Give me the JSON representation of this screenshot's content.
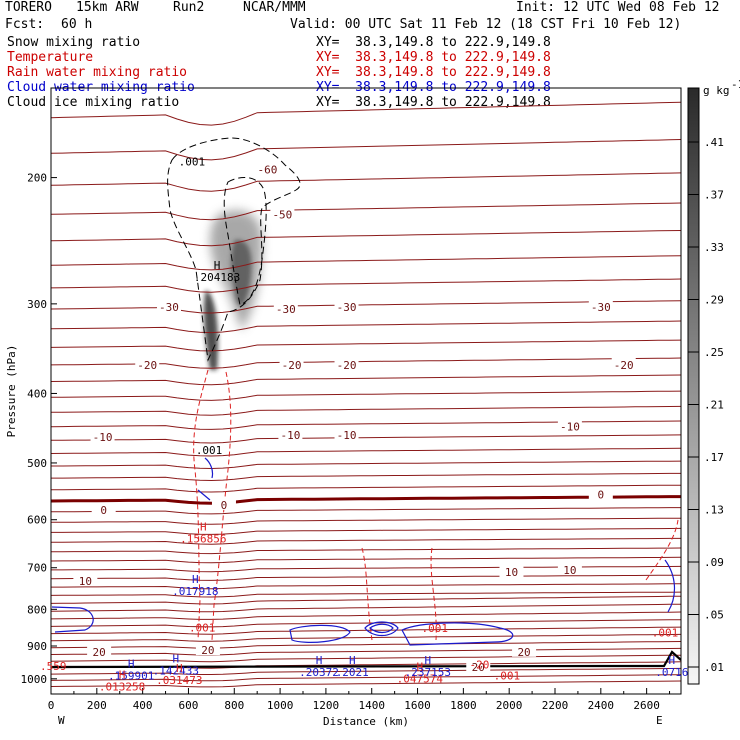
{
  "header": {
    "model": "TORERO",
    "grid": "15km ARW",
    "run": "Run2",
    "org": "NCAR/MMM",
    "init": "Init: 12 UTC Wed 08 Feb 12",
    "fcst_label": "Fcst:",
    "fcst_value": "60 h",
    "valid": "Valid: 00 UTC Sat 11 Feb 12 (18 CST Fri 10 Feb 12)"
  },
  "fields": [
    {
      "name": "Snow mixing ratio",
      "xy": "XY=  38.3,149.8 to 222.9,149.8",
      "color": "#000000"
    },
    {
      "name": "Temperature",
      "xy": "XY=  38.3,149.8 to 222.9,149.8",
      "color": "#cc0000"
    },
    {
      "name": "Rain water mixing ratio",
      "xy": "XY=  38.3,149.8 to 222.9,149.8",
      "color": "#cc0000"
    },
    {
      "name": "Cloud water mixing ratio",
      "xy": "XY=  38.3,149.8 to 222.9,149.8",
      "color": "#0000cc"
    },
    {
      "name": "Cloud ice mixing ratio",
      "xy": "XY=  38.3,149.8 to 222.9,149.8",
      "color": "#000000"
    }
  ],
  "colors": {
    "temperature": "#8b1a1a",
    "zero_isotherm": "#7a0000",
    "rain": "#dd2222",
    "cloud_water": "#1a1acc",
    "ice": "#000000",
    "terrain": "#000000"
  },
  "chart_data": {
    "type": "cross-section contour",
    "xlabel": "Distance (km)",
    "ylabel": "Pressure (hPa)",
    "xlim": [
      0,
      2750
    ],
    "ylim": [
      150,
      1050
    ],
    "y_log": true,
    "x_ticks": [
      0,
      200,
      400,
      600,
      800,
      1000,
      1200,
      1400,
      1600,
      1800,
      2000,
      2200,
      2400,
      2600
    ],
    "y_ticks": [
      200,
      300,
      400,
      500,
      600,
      700,
      800,
      900,
      1000
    ],
    "left_end": "W",
    "right_end": "E",
    "colorbar": {
      "unit": "g kg",
      "unit_exp": "-1",
      "ticks": [
        ".01",
        ".05",
        ".09",
        ".13",
        ".17",
        ".21",
        ".25",
        ".29",
        ".33",
        ".37",
        ".41"
      ]
    },
    "temperature_contours": [
      {
        "label": "-60",
        "x": 945,
        "p": 195
      },
      {
        "label": "-50",
        "x": 1010,
        "p": 225
      },
      {
        "label": "-30",
        "x": 515,
        "p": 303
      },
      {
        "label": "-30",
        "x": 1025,
        "p": 305
      },
      {
        "label": "-30",
        "x": 1290,
        "p": 303
      },
      {
        "label": "-30",
        "x": 2400,
        "p": 303
      },
      {
        "label": "-20",
        "x": 420,
        "p": 365
      },
      {
        "label": "-20",
        "x": 1050,
        "p": 365
      },
      {
        "label": "-20",
        "x": 1290,
        "p": 365
      },
      {
        "label": "-20",
        "x": 2500,
        "p": 365
      },
      {
        "label": "-10",
        "x": 225,
        "p": 460
      },
      {
        "label": "-10",
        "x": 1045,
        "p": 457
      },
      {
        "label": "-10",
        "x": 1290,
        "p": 457
      },
      {
        "label": "-10",
        "x": 2265,
        "p": 445
      },
      {
        "label": "0",
        "x": 230,
        "p": 582
      },
      {
        "label": "0",
        "x": 755,
        "p": 572
      },
      {
        "label": "0",
        "x": 2400,
        "p": 553
      },
      {
        "label": "10",
        "x": 150,
        "p": 730
      },
      {
        "label": "10",
        "x": 2010,
        "p": 710
      },
      {
        "label": "10",
        "x": 2265,
        "p": 705
      },
      {
        "label": "20",
        "x": 210,
        "p": 917
      },
      {
        "label": "20",
        "x": 685,
        "p": 912
      },
      {
        "label": "20",
        "x": 2065,
        "p": 917
      },
      {
        "label": "20",
        "x": 1865,
        "p": 963
      }
    ],
    "maxima": [
      {
        "field": "snow",
        "label": "H",
        "value": ".204183",
        "x": 725,
        "p": 270
      },
      {
        "field": "rain",
        "label": "H",
        "value": ".156856",
        "x": 665,
        "p": 625
      },
      {
        "field": "cloud_water",
        "label": "H",
        "value": ".017918",
        "x": 630,
        "p": 740
      },
      {
        "field": "cloud_water",
        "label": "H",
        "value": ".159901",
        "x": 350,
        "p": 970
      },
      {
        "field": "cloud_water",
        "label": "H",
        "value": ".142433",
        "x": 545,
        "p": 955
      },
      {
        "field": "rain",
        "label": "H",
        "value": ".031473",
        "x": 560,
        "p": 985
      },
      {
        "field": "cloud_water",
        "label": "H",
        "value": ".20372",
        "x": 1170,
        "p": 960
      },
      {
        "field": "cloud_water",
        "label": "H",
        "value": ".2021",
        "x": 1315,
        "p": 960
      },
      {
        "field": "rain",
        "label": "H",
        "value": ".047574",
        "x": 1610,
        "p": 980
      },
      {
        "field": "cloud_water",
        "label": "H",
        "value": ".237153",
        "x": 1645,
        "p": 960
      },
      {
        "field": "cloud_water",
        "label": "H",
        "value": ".0716",
        "x": 2710,
        "p": 960
      },
      {
        "field": "rain",
        "label": "H",
        "value": ".013258",
        "x": 310,
        "p": 1005
      }
    ],
    "small_labels": [
      {
        "field": "snow",
        "value": ".001",
        "x": 615,
        "p": 190
      },
      {
        "field": "snow",
        "value": ".001",
        "x": 690,
        "p": 480
      },
      {
        "field": "rain",
        "value": ".001",
        "x": 660,
        "p": 848
      },
      {
        "field": "rain",
        "value": ".001",
        "x": 1675,
        "p": 850
      },
      {
        "field": "rain",
        "value": ".001",
        "x": 2680,
        "p": 862
      },
      {
        "field": "rain",
        "value": ".001",
        "x": 1990,
        "p": 990
      },
      {
        "field": "rain",
        "value": ".559",
        "x": 10,
        "p": 960
      },
      {
        "field": "rain",
        "value": "-20",
        "x": 1870,
        "p": 955
      }
    ]
  }
}
